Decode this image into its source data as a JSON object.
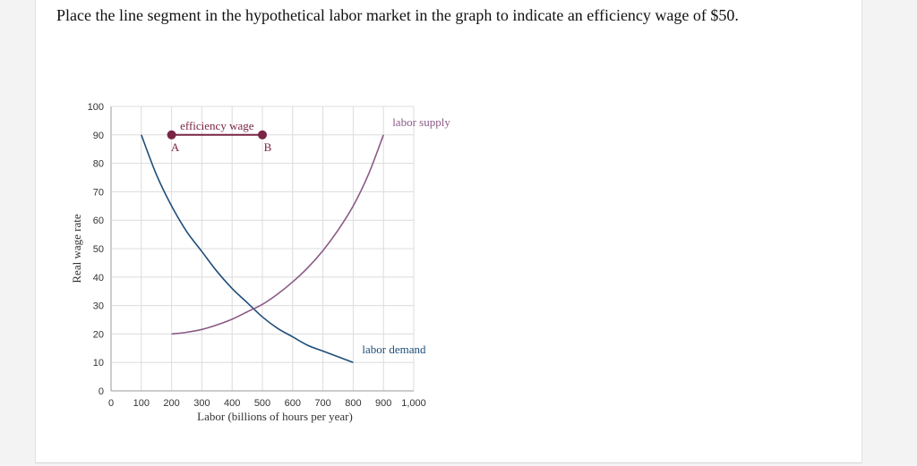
{
  "question": "Place the line segment in the hypothetical labor market in the graph to indicate an efficiency wage of $50.",
  "chart_data": {
    "type": "line",
    "xlabel": "Labor (billions of hours per year)",
    "ylabel": "Real wage rate",
    "xlim": [
      0,
      1000
    ],
    "ylim": [
      0,
      100
    ],
    "x_ticks": [
      0,
      100,
      200,
      300,
      400,
      500,
      600,
      700,
      800,
      900,
      1000
    ],
    "x_tick_labels": [
      "0",
      "100",
      "200",
      "300",
      "400",
      "500",
      "600",
      "700",
      "800",
      "900",
      "1,000"
    ],
    "y_ticks": [
      0,
      10,
      20,
      30,
      40,
      50,
      60,
      70,
      80,
      90,
      100
    ],
    "y_tick_labels": [
      "0",
      "10",
      "20",
      "30",
      "40",
      "50",
      "60",
      "70",
      "80",
      "90",
      "100"
    ],
    "grid": true,
    "series": [
      {
        "name": "labor demand",
        "color": "#1f4e79",
        "x": [
          100,
          150,
          200,
          250,
          300,
          350,
          400,
          450,
          500,
          550,
          600,
          650,
          700,
          750,
          800
        ],
        "y": [
          90,
          76,
          65,
          56,
          49,
          42,
          36,
          31,
          26,
          22,
          19,
          16,
          14,
          12,
          10
        ]
      },
      {
        "name": "labor supply",
        "color": "#8a5a86",
        "x": [
          200,
          250,
          300,
          350,
          400,
          450,
          500,
          550,
          600,
          650,
          700,
          750,
          800,
          850,
          900
        ],
        "y": [
          20,
          20.6,
          21.6,
          23.2,
          25.2,
          27.8,
          30.4,
          34,
          38.3,
          43.3,
          49.3,
          56.5,
          65,
          76,
          90
        ]
      }
    ],
    "segment": {
      "label": "efficiency wage",
      "color": "#7a2545",
      "start": {
        "name": "A",
        "x": 200,
        "y": 90
      },
      "end": {
        "name": "B",
        "x": 500,
        "y": 90
      }
    }
  }
}
